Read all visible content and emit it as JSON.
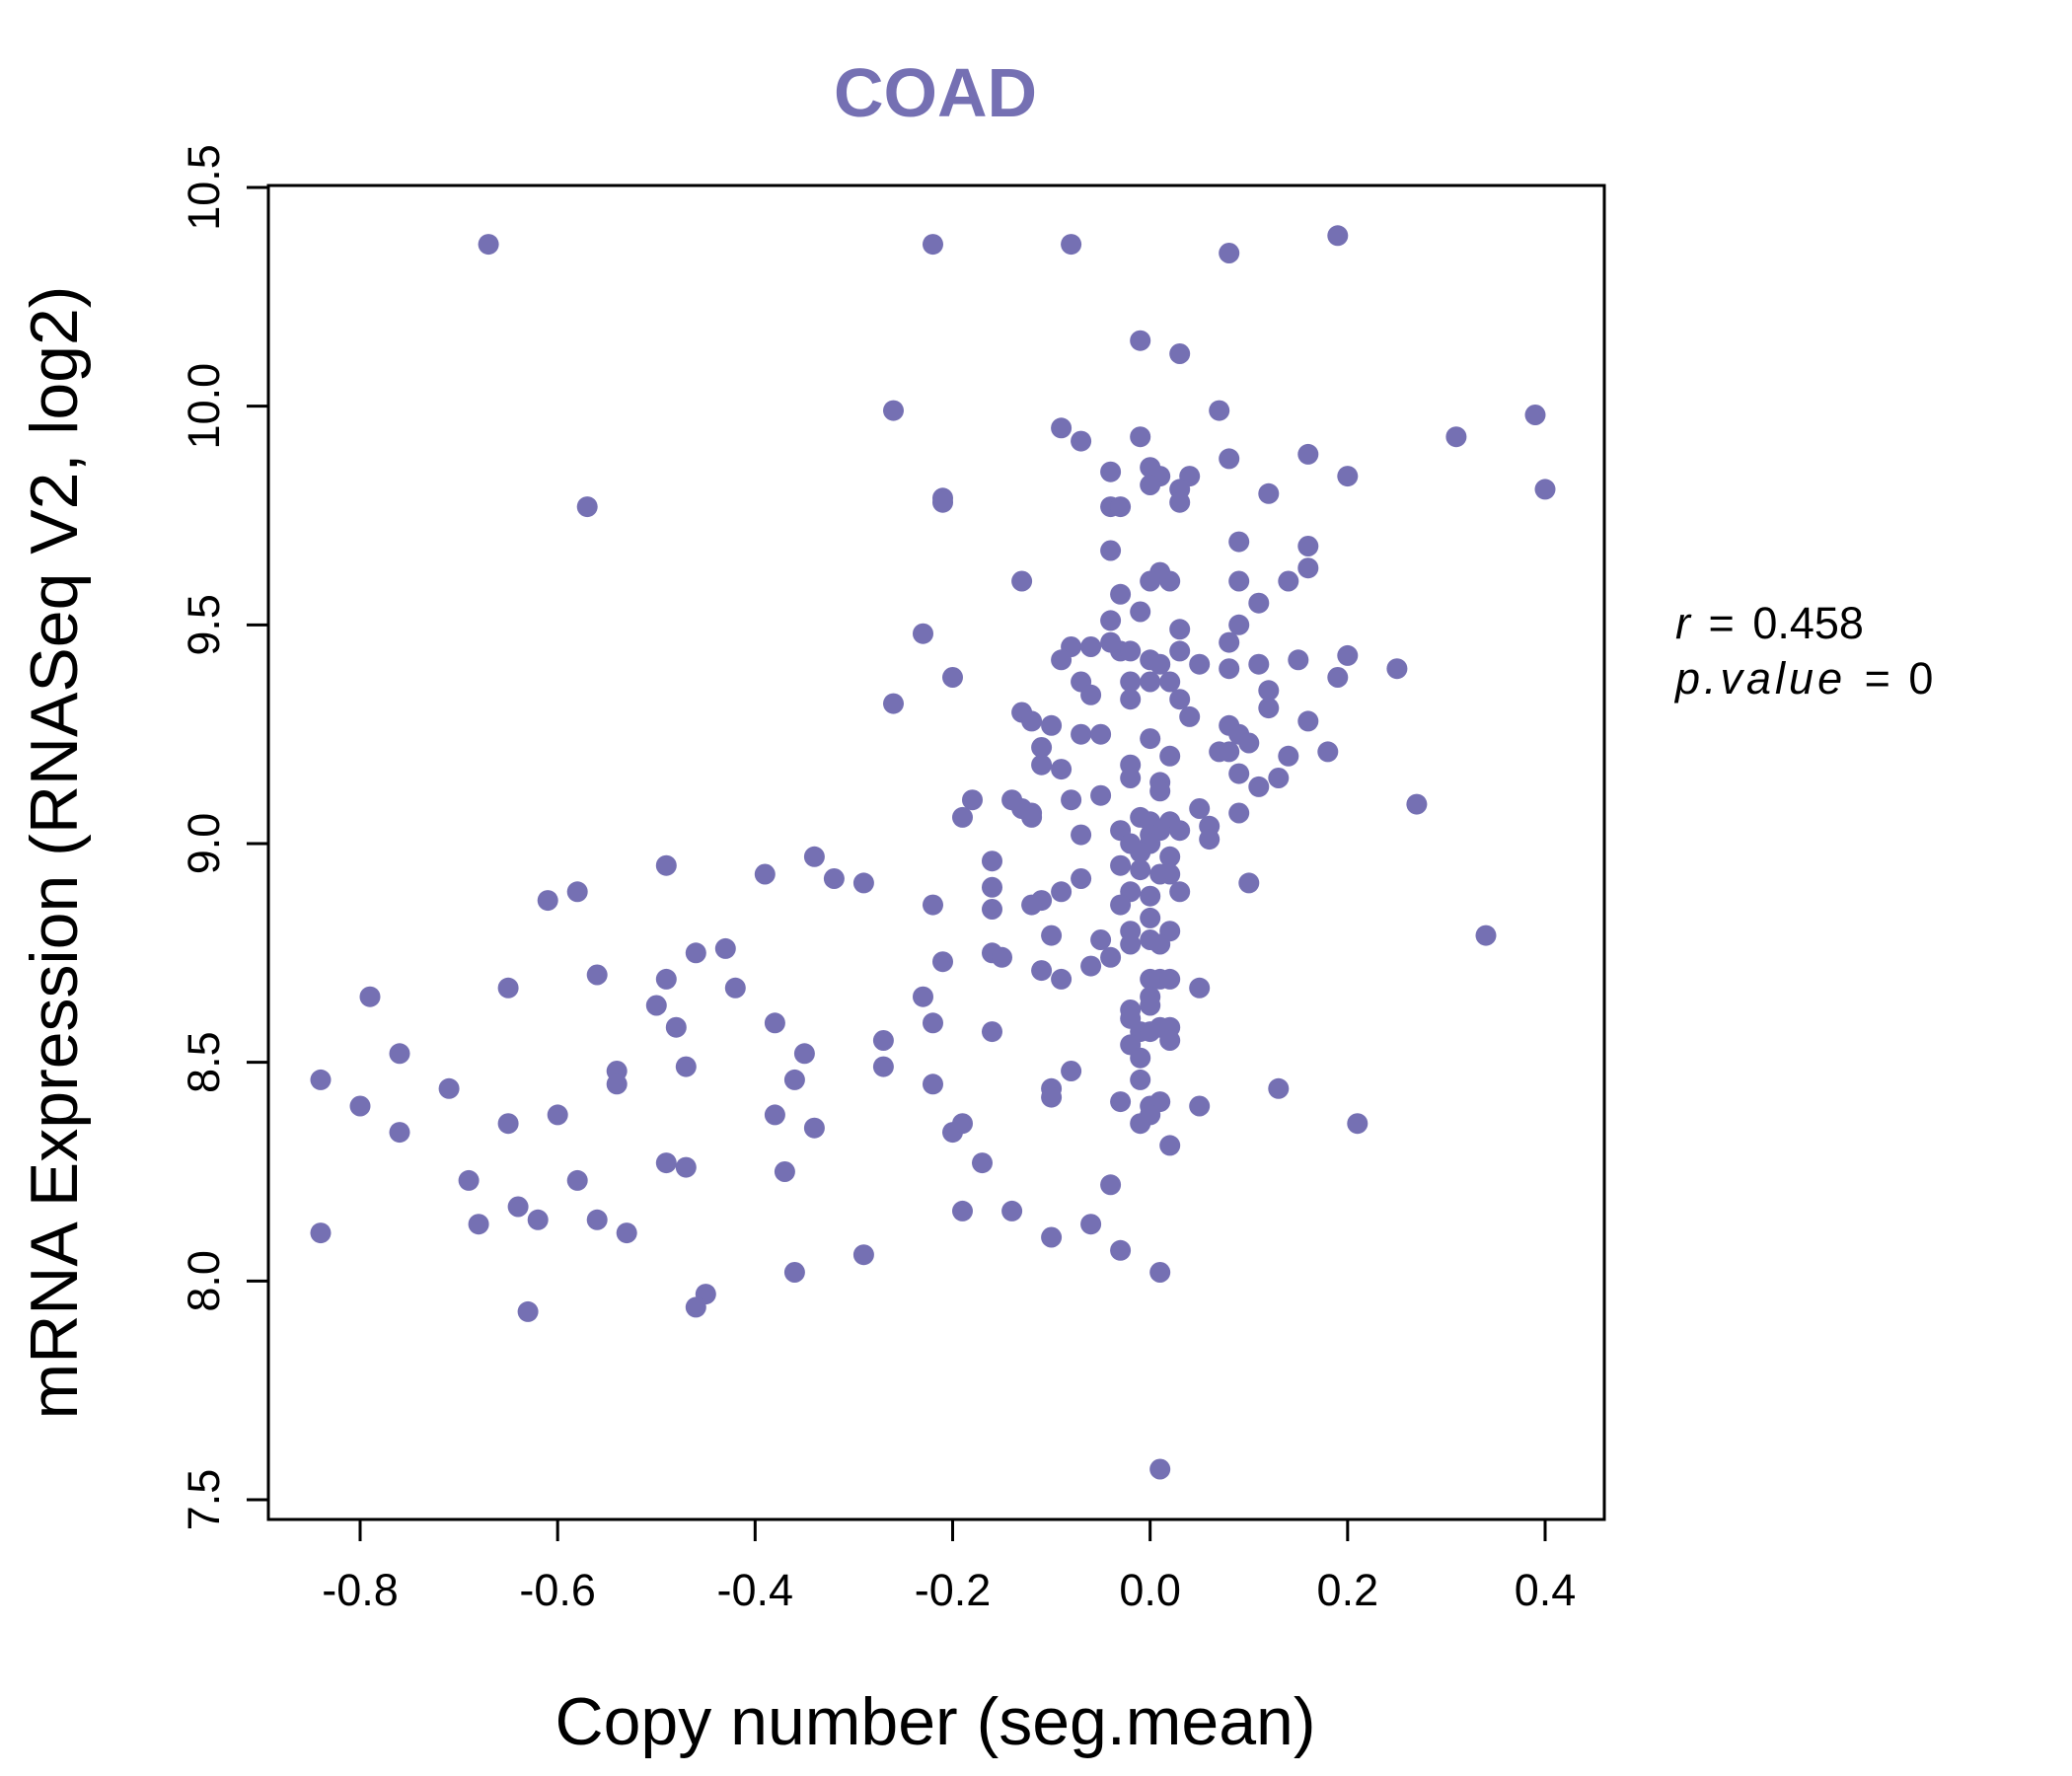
{
  "colors": {
    "point": "#7570b3",
    "title": "#7570b3",
    "axis": "#000000"
  },
  "chart_data": {
    "type": "scatter",
    "title": "COAD",
    "xlabel": "Copy number (seg.mean)",
    "ylabel": "mRNA Expression (RNASeq V2, log2)",
    "xlim": [
      -0.9,
      0.4
    ],
    "ylim": [
      7.5,
      10.5
    ],
    "xticks": [
      "-0.8",
      "-0.6",
      "-0.4",
      "-0.2",
      "0.0",
      "0.2",
      "0.4"
    ],
    "yticks": [
      "7.5",
      "8.0",
      "8.5",
      "9.0",
      "9.5",
      "10.0",
      "10.5"
    ],
    "grid": false,
    "stats": {
      "r_label": "r",
      "r_value": "0.458",
      "p_label": "p.value",
      "p_value": "0"
    },
    "points": [
      [
        -0.67,
        10.37
      ],
      [
        -0.22,
        10.37
      ],
      [
        -0.08,
        10.37
      ],
      [
        0.08,
        10.35
      ],
      [
        0.19,
        10.39
      ],
      [
        -0.01,
        10.15
      ],
      [
        0.03,
        10.12
      ],
      [
        -0.26,
        9.99
      ],
      [
        0.07,
        9.99
      ],
      [
        0.39,
        9.98
      ],
      [
        -0.09,
        9.95
      ],
      [
        -0.07,
        9.92
      ],
      [
        -0.01,
        9.93
      ],
      [
        0.31,
        9.93
      ],
      [
        0.08,
        9.88
      ],
      [
        0.16,
        9.89
      ],
      [
        -0.04,
        9.85
      ],
      [
        0.0,
        9.86
      ],
      [
        0.01,
        9.84
      ],
      [
        0.04,
        9.84
      ],
      [
        0.2,
        9.84
      ],
      [
        0.0,
        9.82
      ],
      [
        0.03,
        9.81
      ],
      [
        0.12,
        9.8
      ],
      [
        0.4,
        9.81
      ],
      [
        -0.21,
        9.79
      ],
      [
        -0.21,
        9.78
      ],
      [
        0.03,
        9.78
      ],
      [
        -0.57,
        9.77
      ],
      [
        -0.04,
        9.77
      ],
      [
        -0.03,
        9.77
      ],
      [
        0.09,
        9.69
      ],
      [
        0.16,
        9.68
      ],
      [
        -0.04,
        9.67
      ],
      [
        0.16,
        9.63
      ],
      [
        0.01,
        9.62
      ],
      [
        0.0,
        9.6
      ],
      [
        0.02,
        9.6
      ],
      [
        0.09,
        9.6
      ],
      [
        0.14,
        9.6
      ],
      [
        -0.13,
        9.6
      ],
      [
        -0.03,
        9.57
      ],
      [
        0.11,
        9.55
      ],
      [
        -0.01,
        9.53
      ],
      [
        -0.04,
        9.51
      ],
      [
        0.09,
        9.5
      ],
      [
        0.03,
        9.49
      ],
      [
        -0.23,
        9.48
      ],
      [
        0.08,
        9.46
      ],
      [
        -0.08,
        9.45
      ],
      [
        -0.06,
        9.45
      ],
      [
        -0.03,
        9.44
      ],
      [
        -0.02,
        9.44
      ],
      [
        -0.04,
        9.46
      ],
      [
        0.03,
        9.44
      ],
      [
        0.2,
        9.43
      ],
      [
        0.15,
        9.42
      ],
      [
        -0.09,
        9.42
      ],
      [
        0.0,
        9.42
      ],
      [
        0.01,
        9.41
      ],
      [
        0.05,
        9.41
      ],
      [
        0.11,
        9.41
      ],
      [
        0.08,
        9.4
      ],
      [
        0.25,
        9.4
      ],
      [
        -0.2,
        9.38
      ],
      [
        -0.07,
        9.37
      ],
      [
        -0.02,
        9.37
      ],
      [
        0.0,
        9.37
      ],
      [
        0.02,
        9.37
      ],
      [
        0.19,
        9.38
      ],
      [
        0.12,
        9.35
      ],
      [
        -0.06,
        9.34
      ],
      [
        -0.02,
        9.33
      ],
      [
        0.03,
        9.33
      ],
      [
        -0.26,
        9.32
      ],
      [
        0.12,
        9.31
      ],
      [
        -0.13,
        9.3
      ],
      [
        0.04,
        9.29
      ],
      [
        -0.12,
        9.28
      ],
      [
        0.16,
        9.28
      ],
      [
        -0.1,
        9.27
      ],
      [
        0.08,
        9.27
      ],
      [
        0.09,
        9.25
      ],
      [
        -0.07,
        9.25
      ],
      [
        -0.05,
        9.25
      ],
      [
        0.0,
        9.24
      ],
      [
        0.1,
        9.23
      ],
      [
        -0.11,
        9.22
      ],
      [
        0.07,
        9.21
      ],
      [
        0.08,
        9.21
      ],
      [
        0.18,
        9.21
      ],
      [
        0.14,
        9.2
      ],
      [
        0.02,
        9.2
      ],
      [
        -0.02,
        9.18
      ],
      [
        -0.11,
        9.18
      ],
      [
        -0.09,
        9.17
      ],
      [
        0.09,
        9.16
      ],
      [
        -0.02,
        9.15
      ],
      [
        0.13,
        9.15
      ],
      [
        0.01,
        9.14
      ],
      [
        0.11,
        9.13
      ],
      [
        0.01,
        9.12
      ],
      [
        -0.08,
        9.1
      ],
      [
        -0.05,
        9.11
      ],
      [
        -0.18,
        9.1
      ],
      [
        -0.14,
        9.1
      ],
      [
        -0.13,
        9.08
      ],
      [
        -0.12,
        9.07
      ],
      [
        0.05,
        9.08
      ],
      [
        0.09,
        9.07
      ],
      [
        -0.19,
        9.06
      ],
      [
        -0.12,
        9.06
      ],
      [
        0.27,
        9.09
      ],
      [
        -0.01,
        9.06
      ],
      [
        0.02,
        9.05
      ],
      [
        0.0,
        9.05
      ],
      [
        0.06,
        9.04
      ],
      [
        0.03,
        9.03
      ],
      [
        -0.03,
        9.03
      ],
      [
        0.01,
        9.03
      ],
      [
        -0.07,
        9.02
      ],
      [
        0.0,
        9.02
      ],
      [
        0.06,
        9.01
      ],
      [
        -0.02,
        9.0
      ],
      [
        0.0,
        9.0
      ],
      [
        -0.34,
        8.97
      ],
      [
        -0.01,
        8.98
      ],
      [
        0.02,
        8.97
      ],
      [
        -0.16,
        8.96
      ],
      [
        -0.03,
        8.95
      ],
      [
        -0.49,
        8.95
      ],
      [
        -0.01,
        8.94
      ],
      [
        0.01,
        8.93
      ],
      [
        0.02,
        8.93
      ],
      [
        -0.32,
        8.92
      ],
      [
        -0.39,
        8.93
      ],
      [
        -0.07,
        8.92
      ],
      [
        0.1,
        8.91
      ],
      [
        -0.29,
        8.91
      ],
      [
        -0.16,
        8.9
      ],
      [
        -0.02,
        8.89
      ],
      [
        0.03,
        8.89
      ],
      [
        -0.09,
        8.89
      ],
      [
        -0.58,
        8.89
      ],
      [
        0.0,
        8.88
      ],
      [
        -0.61,
        8.87
      ],
      [
        -0.11,
        8.87
      ],
      [
        -0.12,
        8.86
      ],
      [
        -0.16,
        8.85
      ],
      [
        -0.22,
        8.86
      ],
      [
        -0.03,
        8.86
      ],
      [
        0.0,
        8.83
      ],
      [
        0.02,
        8.8
      ],
      [
        -0.02,
        8.8
      ],
      [
        -0.1,
        8.79
      ],
      [
        0.0,
        8.78
      ],
      [
        -0.05,
        8.78
      ],
      [
        -0.02,
        8.77
      ],
      [
        0.01,
        8.77
      ],
      [
        0.34,
        8.79
      ],
      [
        -0.43,
        8.76
      ],
      [
        -0.46,
        8.75
      ],
      [
        -0.16,
        8.75
      ],
      [
        -0.15,
        8.74
      ],
      [
        -0.04,
        8.74
      ],
      [
        -0.21,
        8.73
      ],
      [
        -0.06,
        8.72
      ],
      [
        -0.11,
        8.71
      ],
      [
        -0.56,
        8.7
      ],
      [
        0.0,
        8.69
      ],
      [
        0.01,
        8.69
      ],
      [
        0.02,
        8.69
      ],
      [
        -0.09,
        8.69
      ],
      [
        -0.49,
        8.69
      ],
      [
        -0.42,
        8.67
      ],
      [
        -0.65,
        8.67
      ],
      [
        0.05,
        8.67
      ],
      [
        0.0,
        8.65
      ],
      [
        -0.79,
        8.65
      ],
      [
        -0.23,
        8.65
      ],
      [
        0.0,
        8.63
      ],
      [
        -0.5,
        8.63
      ],
      [
        -0.02,
        8.62
      ],
      [
        -0.02,
        8.6
      ],
      [
        -0.38,
        8.59
      ],
      [
        -0.22,
        8.59
      ],
      [
        0.01,
        8.58
      ],
      [
        -0.48,
        8.58
      ],
      [
        -0.01,
        8.57
      ],
      [
        0.0,
        8.57
      ],
      [
        0.02,
        8.58
      ],
      [
        -0.16,
        8.57
      ],
      [
        -0.27,
        8.55
      ],
      [
        0.02,
        8.55
      ],
      [
        -0.02,
        8.54
      ],
      [
        -0.76,
        8.52
      ],
      [
        -0.35,
        8.52
      ],
      [
        -0.01,
        8.51
      ],
      [
        -0.47,
        8.49
      ],
      [
        -0.27,
        8.49
      ],
      [
        -0.08,
        8.48
      ],
      [
        -0.54,
        8.48
      ],
      [
        -0.36,
        8.46
      ],
      [
        -0.01,
        8.46
      ],
      [
        -0.84,
        8.46
      ],
      [
        -0.22,
        8.45
      ],
      [
        -0.54,
        8.45
      ],
      [
        -0.71,
        8.44
      ],
      [
        0.13,
        8.44
      ],
      [
        -0.1,
        8.44
      ],
      [
        -0.1,
        8.42
      ],
      [
        0.01,
        8.41
      ],
      [
        0.0,
        8.4
      ],
      [
        -0.03,
        8.41
      ],
      [
        0.05,
        8.4
      ],
      [
        -0.8,
        8.4
      ],
      [
        -0.38,
        8.38
      ],
      [
        -0.6,
        8.38
      ],
      [
        0.0,
        8.38
      ],
      [
        -0.65,
        8.36
      ],
      [
        -0.01,
        8.36
      ],
      [
        0.21,
        8.36
      ],
      [
        -0.19,
        8.36
      ],
      [
        -0.34,
        8.35
      ],
      [
        -0.2,
        8.34
      ],
      [
        -0.76,
        8.34
      ],
      [
        0.02,
        8.31
      ],
      [
        -0.17,
        8.27
      ],
      [
        -0.49,
        8.27
      ],
      [
        -0.47,
        8.26
      ],
      [
        -0.37,
        8.25
      ],
      [
        -0.58,
        8.23
      ],
      [
        -0.69,
        8.23
      ],
      [
        -0.04,
        8.22
      ],
      [
        -0.64,
        8.17
      ],
      [
        -0.19,
        8.16
      ],
      [
        -0.14,
        8.16
      ],
      [
        -0.62,
        8.14
      ],
      [
        -0.56,
        8.14
      ],
      [
        -0.68,
        8.13
      ],
      [
        -0.06,
        8.13
      ],
      [
        -0.53,
        8.11
      ],
      [
        -0.84,
        8.11
      ],
      [
        -0.1,
        8.1
      ],
      [
        -0.03,
        8.07
      ],
      [
        -0.29,
        8.06
      ],
      [
        0.01,
        8.02
      ],
      [
        -0.36,
        8.02
      ],
      [
        -0.45,
        7.97
      ],
      [
        -0.46,
        7.94
      ],
      [
        -0.63,
        7.93
      ],
      [
        0.01,
        7.57
      ]
    ]
  }
}
